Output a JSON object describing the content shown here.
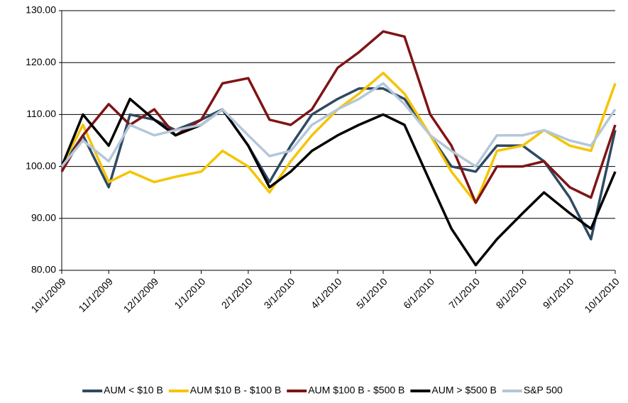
{
  "chart_data": {
    "type": "line",
    "x": [
      "10/1/2009",
      "10/15/2009",
      "11/1/2009",
      "11/15/2009",
      "12/1/2009",
      "12/15/2009",
      "1/1/2010",
      "1/15/2010",
      "2/1/2010",
      "2/15/2010",
      "3/1/2010",
      "3/15/2010",
      "4/1/2010",
      "4/15/2010",
      "5/1/2010",
      "5/15/2010",
      "6/1/2010",
      "6/15/2010",
      "7/1/2010",
      "7/15/2010",
      "8/1/2010",
      "8/15/2010",
      "9/1/2010",
      "9/15/2010",
      "10/1/2010"
    ],
    "series": [
      {
        "name": "AUM < $10 B",
        "color": "#2e4a62",
        "values": [
          100,
          106,
          96,
          110,
          109,
          107,
          109,
          111,
          104,
          97,
          104,
          110,
          113,
          115,
          115,
          113,
          106,
          100,
          99,
          104,
          104,
          101,
          94,
          86,
          107
        ]
      },
      {
        "name": "AUM $10 B - $100 B",
        "color": "#f5c400",
        "values": [
          100,
          108,
          97,
          99,
          97,
          98,
          99,
          103,
          100,
          95,
          101,
          106,
          111,
          114,
          118,
          114,
          106,
          99,
          93,
          103,
          104,
          107,
          104,
          103,
          116
        ]
      },
      {
        "name": "AUM $100 B - $500 B",
        "color": "#7f1416",
        "values": [
          99,
          106,
          112,
          108,
          111,
          106,
          109,
          116,
          117,
          109,
          108,
          111,
          119,
          122,
          126,
          125,
          110,
          104,
          93,
          100,
          100,
          101,
          96,
          94,
          108
        ]
      },
      {
        "name": "AUM > $500 B",
        "color": "#000000",
        "values": [
          100,
          110,
          104,
          113,
          109,
          106,
          108,
          111,
          104,
          96,
          99,
          103,
          106,
          108,
          110,
          108,
          97,
          88,
          81,
          86,
          91,
          95,
          91,
          88,
          99
        ]
      },
      {
        "name": "S&P 500",
        "color": "#b4c7da",
        "values": [
          100,
          105,
          101,
          108,
          106,
          107,
          108,
          111,
          106,
          102,
          103,
          108,
          111,
          113,
          116,
          112,
          106,
          103,
          100,
          106,
          106,
          107,
          105,
          104,
          111
        ]
      }
    ],
    "ylim": [
      80,
      130
    ],
    "yticks": [
      {
        "value": 80,
        "label": "80.00"
      },
      {
        "value": 90,
        "label": "90.00"
      },
      {
        "value": 100,
        "label": "100.00"
      },
      {
        "value": 110,
        "label": "110.00"
      },
      {
        "value": 120,
        "label": "120.00"
      },
      {
        "value": 130,
        "label": "130.00"
      }
    ],
    "xlim": [
      "10/1/2009",
      "10/1/2010"
    ],
    "xticks": [
      "10/1/2009",
      "11/1/2009",
      "12/1/2009",
      "1/1/2010",
      "2/1/2010",
      "3/1/2010",
      "4/1/2010",
      "5/1/2010",
      "6/1/2010",
      "7/1/2010",
      "8/1/2010",
      "9/1/2010",
      "10/1/2010"
    ],
    "grid": true
  }
}
